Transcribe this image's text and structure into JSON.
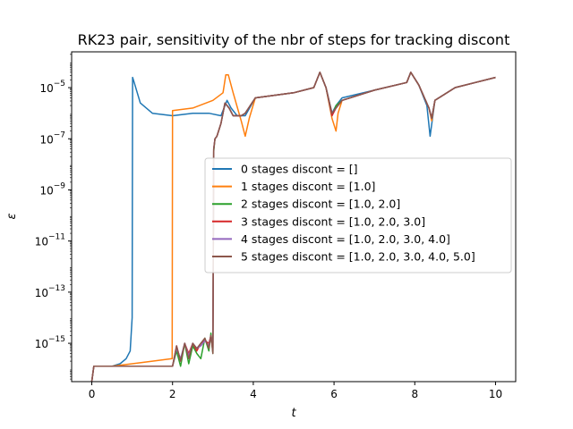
{
  "chart_data": {
    "type": "line",
    "title": "RK23 pair, sensitivity of the nbr of steps for tracking discont",
    "xlabel": "t",
    "ylabel": "ε",
    "xlim": [
      -0.5,
      10.5
    ],
    "ylim_log10": [
      -16.5,
      -3.6
    ],
    "yscale": "log",
    "x_ticks": [
      0,
      2,
      4,
      6,
      8,
      10
    ],
    "x_tick_labels": [
      "0",
      "2",
      "4",
      "6",
      "8",
      "10"
    ],
    "y_ticks_log10": [
      -15,
      -13,
      -11,
      -9,
      -7,
      -5
    ],
    "y_tick_labels": [
      {
        "base": "10",
        "exp": "−15"
      },
      {
        "base": "10",
        "exp": "−13"
      },
      {
        "base": "10",
        "exp": "−11"
      },
      {
        "base": "10",
        "exp": "−9"
      },
      {
        "base": "10",
        "exp": "−7"
      },
      {
        "base": "10",
        "exp": "−5"
      }
    ],
    "legend_position": "center-right",
    "series": [
      {
        "name": "0 stages discont = []",
        "color": "#1f77b4",
        "points": [
          [
            0.0,
            -16.5
          ],
          [
            0.05,
            -15.9
          ],
          [
            0.5,
            -15.9
          ],
          [
            0.7,
            -15.8
          ],
          [
            0.85,
            -15.6
          ],
          [
            0.95,
            -15.3
          ],
          [
            1.0,
            -14.0
          ],
          [
            1.01,
            -4.6
          ],
          [
            1.05,
            -4.8
          ],
          [
            1.2,
            -5.6
          ],
          [
            1.5,
            -6.0
          ],
          [
            2.0,
            -6.1
          ],
          [
            2.5,
            -6.0
          ],
          [
            2.9,
            -6.0
          ],
          [
            3.2,
            -6.1
          ],
          [
            3.35,
            -5.5
          ],
          [
            3.45,
            -5.8
          ],
          [
            3.6,
            -6.1
          ],
          [
            3.8,
            -6.1
          ],
          [
            4.05,
            -5.4
          ],
          [
            5.0,
            -5.2
          ],
          [
            5.5,
            -5.0
          ],
          [
            5.65,
            -4.4
          ],
          [
            5.8,
            -5.0
          ],
          [
            5.95,
            -6.0
          ],
          [
            6.05,
            -5.7
          ],
          [
            6.2,
            -5.4
          ],
          [
            7.0,
            -5.1
          ],
          [
            7.8,
            -4.8
          ],
          [
            7.9,
            -4.4
          ],
          [
            8.1,
            -4.9
          ],
          [
            8.3,
            -5.7
          ],
          [
            8.38,
            -6.9
          ],
          [
            8.5,
            -5.5
          ],
          [
            9.0,
            -5.0
          ],
          [
            9.5,
            -4.8
          ],
          [
            10.0,
            -4.6
          ]
        ]
      },
      {
        "name": "1 stages discont = [1.0]",
        "color": "#ff7f0e",
        "points": [
          [
            0.0,
            -16.5
          ],
          [
            0.05,
            -15.9
          ],
          [
            0.5,
            -15.9
          ],
          [
            1.0,
            -15.8
          ],
          [
            1.5,
            -15.7
          ],
          [
            1.99,
            -15.6
          ],
          [
            2.0,
            -5.9
          ],
          [
            2.5,
            -5.8
          ],
          [
            3.0,
            -5.5
          ],
          [
            3.25,
            -5.2
          ],
          [
            3.32,
            -4.5
          ],
          [
            3.38,
            -4.5
          ],
          [
            3.5,
            -5.2
          ],
          [
            3.7,
            -6.3
          ],
          [
            3.8,
            -6.9
          ],
          [
            3.9,
            -6.2
          ],
          [
            4.05,
            -5.4
          ],
          [
            5.0,
            -5.2
          ],
          [
            5.5,
            -5.0
          ],
          [
            5.65,
            -4.4
          ],
          [
            5.8,
            -5.0
          ],
          [
            5.95,
            -6.2
          ],
          [
            6.05,
            -6.7
          ],
          [
            6.1,
            -6.0
          ],
          [
            6.2,
            -5.5
          ],
          [
            7.0,
            -5.1
          ],
          [
            7.8,
            -4.8
          ],
          [
            7.9,
            -4.4
          ],
          [
            8.1,
            -4.9
          ],
          [
            8.35,
            -5.8
          ],
          [
            8.42,
            -6.3
          ],
          [
            8.5,
            -5.5
          ],
          [
            9.0,
            -5.0
          ],
          [
            9.5,
            -4.8
          ],
          [
            10.0,
            -4.6
          ]
        ]
      },
      {
        "name": "2 stages discont = [1.0, 2.0]",
        "color": "#2ca02c",
        "points": [
          [
            0.0,
            -16.5
          ],
          [
            0.05,
            -15.9
          ],
          [
            0.5,
            -15.9
          ],
          [
            1.0,
            -15.9
          ],
          [
            2.0,
            -15.9
          ],
          [
            2.1,
            -15.3
          ],
          [
            2.2,
            -15.9
          ],
          [
            2.3,
            -15.0
          ],
          [
            2.4,
            -15.8
          ],
          [
            2.5,
            -15.1
          ],
          [
            2.6,
            -15.4
          ],
          [
            2.7,
            -15.6
          ],
          [
            2.8,
            -14.8
          ],
          [
            2.9,
            -15.3
          ],
          [
            2.95,
            -14.6
          ],
          [
            3.0,
            -15.4
          ],
          [
            3.02,
            -7.5
          ],
          [
            3.05,
            -7.0
          ],
          [
            3.1,
            -6.9
          ],
          [
            3.2,
            -6.4
          ],
          [
            3.3,
            -5.6
          ],
          [
            3.4,
            -5.8
          ],
          [
            3.5,
            -6.1
          ],
          [
            3.7,
            -6.1
          ],
          [
            3.8,
            -6.0
          ],
          [
            4.05,
            -5.4
          ],
          [
            5.0,
            -5.2
          ],
          [
            5.5,
            -5.0
          ],
          [
            5.65,
            -4.4
          ],
          [
            5.8,
            -5.0
          ],
          [
            5.95,
            -6.1
          ],
          [
            6.05,
            -5.7
          ],
          [
            6.2,
            -5.5
          ],
          [
            7.0,
            -5.1
          ],
          [
            7.8,
            -4.8
          ],
          [
            7.9,
            -4.4
          ],
          [
            8.1,
            -4.9
          ],
          [
            8.35,
            -5.8
          ],
          [
            8.42,
            -6.2
          ],
          [
            8.5,
            -5.5
          ],
          [
            9.0,
            -5.0
          ],
          [
            9.5,
            -4.8
          ],
          [
            10.0,
            -4.6
          ]
        ]
      },
      {
        "name": "3 stages discont = [1.0, 2.0, 3.0]",
        "color": "#d62728",
        "points": [
          [
            0.0,
            -16.5
          ],
          [
            0.05,
            -15.9
          ],
          [
            0.5,
            -15.9
          ],
          [
            1.0,
            -15.9
          ],
          [
            2.0,
            -15.9
          ],
          [
            2.1,
            -15.1
          ],
          [
            2.2,
            -15.7
          ],
          [
            2.3,
            -15.0
          ],
          [
            2.4,
            -15.4
          ],
          [
            2.5,
            -15.0
          ],
          [
            2.6,
            -15.3
          ],
          [
            2.7,
            -15.0
          ],
          [
            2.8,
            -14.9
          ],
          [
            2.9,
            -15.0
          ],
          [
            2.95,
            -14.7
          ],
          [
            3.0,
            -15.2
          ],
          [
            3.02,
            -7.4
          ],
          [
            3.05,
            -7.0
          ],
          [
            3.1,
            -6.9
          ],
          [
            3.2,
            -6.4
          ],
          [
            3.3,
            -5.6
          ],
          [
            3.4,
            -5.8
          ],
          [
            3.5,
            -6.1
          ],
          [
            3.7,
            -6.1
          ],
          [
            3.8,
            -6.0
          ],
          [
            4.05,
            -5.4
          ],
          [
            5.0,
            -5.2
          ],
          [
            5.5,
            -5.0
          ],
          [
            5.65,
            -4.4
          ],
          [
            5.8,
            -5.0
          ],
          [
            5.95,
            -6.1
          ],
          [
            6.05,
            -5.8
          ],
          [
            6.2,
            -5.5
          ],
          [
            7.0,
            -5.1
          ],
          [
            7.8,
            -4.8
          ],
          [
            7.9,
            -4.4
          ],
          [
            8.1,
            -4.9
          ],
          [
            8.35,
            -5.8
          ],
          [
            8.42,
            -6.2
          ],
          [
            8.5,
            -5.5
          ],
          [
            9.0,
            -5.0
          ],
          [
            9.5,
            -4.8
          ],
          [
            10.0,
            -4.6
          ]
        ]
      },
      {
        "name": "4 stages discont = [1.0, 2.0, 3.0, 4.0]",
        "color": "#9467bd",
        "points": [
          [
            0.0,
            -16.5
          ],
          [
            0.05,
            -15.9
          ],
          [
            0.5,
            -15.9
          ],
          [
            1.0,
            -15.9
          ],
          [
            2.0,
            -15.9
          ],
          [
            2.1,
            -15.2
          ],
          [
            2.2,
            -15.6
          ],
          [
            2.3,
            -15.0
          ],
          [
            2.4,
            -15.5
          ],
          [
            2.5,
            -15.0
          ],
          [
            2.6,
            -15.2
          ],
          [
            2.7,
            -15.1
          ],
          [
            2.8,
            -14.9
          ],
          [
            2.9,
            -15.1
          ],
          [
            2.95,
            -14.7
          ],
          [
            3.0,
            -15.3
          ],
          [
            3.02,
            -7.4
          ],
          [
            3.05,
            -7.0
          ],
          [
            3.1,
            -6.9
          ],
          [
            3.2,
            -6.4
          ],
          [
            3.3,
            -5.6
          ],
          [
            3.4,
            -5.8
          ],
          [
            3.5,
            -6.1
          ],
          [
            3.7,
            -6.1
          ],
          [
            3.8,
            -6.0
          ],
          [
            4.05,
            -5.4
          ],
          [
            5.0,
            -5.2
          ],
          [
            5.5,
            -5.0
          ],
          [
            5.65,
            -4.4
          ],
          [
            5.8,
            -5.0
          ],
          [
            5.95,
            -6.0
          ],
          [
            6.05,
            -5.8
          ],
          [
            6.2,
            -5.5
          ],
          [
            7.0,
            -5.1
          ],
          [
            7.8,
            -4.8
          ],
          [
            7.9,
            -4.4
          ],
          [
            8.1,
            -4.9
          ],
          [
            8.35,
            -5.8
          ],
          [
            8.42,
            -6.2
          ],
          [
            8.5,
            -5.5
          ],
          [
            9.0,
            -5.0
          ],
          [
            9.5,
            -4.8
          ],
          [
            10.0,
            -4.6
          ]
        ]
      },
      {
        "name": "5 stages discont = [1.0, 2.0, 3.0, 4.0, 5.0]",
        "color": "#8c564b",
        "points": [
          [
            0.0,
            -16.5
          ],
          [
            0.05,
            -15.9
          ],
          [
            0.5,
            -15.9
          ],
          [
            1.0,
            -15.9
          ],
          [
            2.0,
            -15.9
          ],
          [
            2.1,
            -15.1
          ],
          [
            2.2,
            -15.7
          ],
          [
            2.3,
            -15.0
          ],
          [
            2.4,
            -15.6
          ],
          [
            2.5,
            -15.0
          ],
          [
            2.6,
            -15.2
          ],
          [
            2.7,
            -15.0
          ],
          [
            2.8,
            -14.8
          ],
          [
            2.9,
            -15.2
          ],
          [
            2.95,
            -14.7
          ],
          [
            3.0,
            -15.4
          ],
          [
            3.02,
            -7.4
          ],
          [
            3.05,
            -7.0
          ],
          [
            3.1,
            -6.9
          ],
          [
            3.2,
            -6.4
          ],
          [
            3.3,
            -5.6
          ],
          [
            3.4,
            -5.8
          ],
          [
            3.5,
            -6.1
          ],
          [
            3.7,
            -6.1
          ],
          [
            3.8,
            -6.0
          ],
          [
            4.05,
            -5.4
          ],
          [
            5.0,
            -5.2
          ],
          [
            5.5,
            -5.0
          ],
          [
            5.65,
            -4.4
          ],
          [
            5.8,
            -5.0
          ],
          [
            5.95,
            -6.0
          ],
          [
            6.05,
            -5.8
          ],
          [
            6.2,
            -5.5
          ],
          [
            7.0,
            -5.1
          ],
          [
            7.8,
            -4.8
          ],
          [
            7.9,
            -4.4
          ],
          [
            8.1,
            -4.9
          ],
          [
            8.35,
            -5.8
          ],
          [
            8.42,
            -6.2
          ],
          [
            8.5,
            -5.5
          ],
          [
            9.0,
            -5.0
          ],
          [
            9.5,
            -4.8
          ],
          [
            10.0,
            -4.6
          ]
        ]
      }
    ]
  }
}
